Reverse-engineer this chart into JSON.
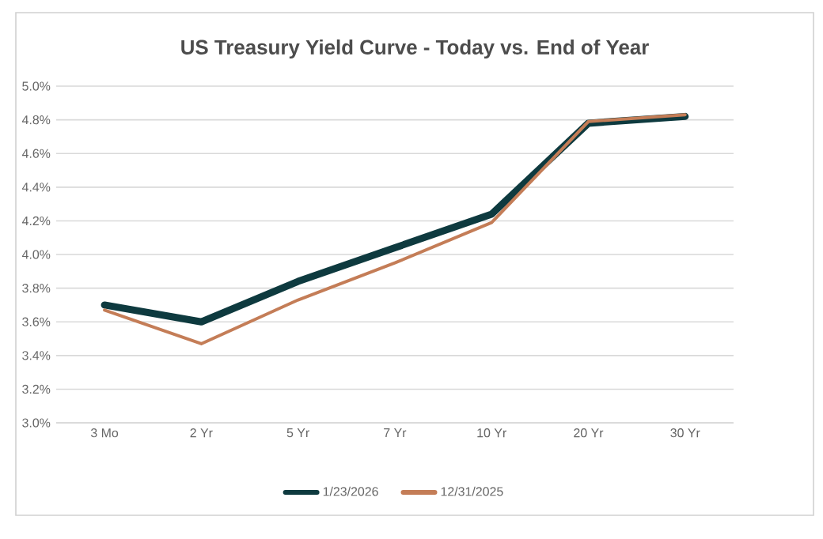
{
  "chart_data": {
    "type": "line",
    "title": "US Treasury Yield Curve - Today vs. End of Year",
    "categories": [
      "3 Mo",
      "2 Yr",
      "5 Yr",
      "7 Yr",
      "10 Yr",
      "20 Yr",
      "30 Yr"
    ],
    "series": [
      {
        "name": "1/23/2026",
        "color": "#0e3a3f",
        "values": [
          3.7,
          3.6,
          3.84,
          4.04,
          4.24,
          4.78,
          4.82
        ]
      },
      {
        "name": "12/31/2025",
        "color": "#c47d57",
        "values": [
          3.67,
          3.47,
          3.73,
          3.95,
          4.19,
          4.79,
          4.83
        ]
      }
    ],
    "ylim": [
      3.0,
      5.0
    ],
    "yticks": [
      {
        "value": 3.0,
        "label": "3.0%"
      },
      {
        "value": 3.2,
        "label": "3.2%"
      },
      {
        "value": 3.4,
        "label": "3.4%"
      },
      {
        "value": 3.6,
        "label": "3.6%"
      },
      {
        "value": 3.8,
        "label": "3.8%"
      },
      {
        "value": 4.0,
        "label": "4.0%"
      },
      {
        "value": 4.2,
        "label": "4.2%"
      },
      {
        "value": 4.4,
        "label": "4.4%"
      },
      {
        "value": 4.6,
        "label": "4.6%"
      },
      {
        "value": 4.8,
        "label": "4.8%"
      },
      {
        "value": 5.0,
        "label": "5.0%"
      }
    ],
    "grid": "y",
    "legend": "bottom",
    "marker": "none",
    "line_style": "solid"
  }
}
